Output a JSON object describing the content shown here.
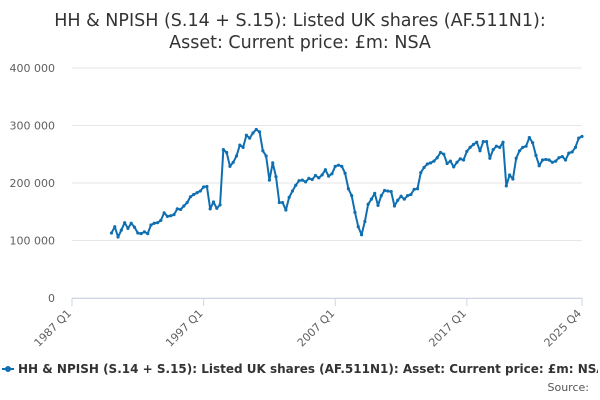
{
  "chart_data": {
    "type": "line",
    "title_line1": "HH & NPISH (S.14 + S.15): Listed UK shares (AF.511N1):",
    "title_line2": "Asset: Current price: £m: NSA",
    "ylim": [
      0,
      400000
    ],
    "yticks": [
      "0",
      "100 000",
      "200 000",
      "300 000",
      "400 000"
    ],
    "ytick_values": [
      0,
      100000,
      200000,
      300000,
      400000
    ],
    "xticks": [
      {
        "label": "1987 Q1",
        "value": 1987.0
      },
      {
        "label": "1997 Q1",
        "value": 1997.0
      },
      {
        "label": "2007 Q1",
        "value": 2007.0
      },
      {
        "label": "2017 Q1",
        "value": 2017.0
      },
      {
        "label": "2025 Q4",
        "value": 2025.75
      }
    ],
    "xlim": [
      1987.0,
      2025.75
    ],
    "grid": true,
    "legend_position": "bottom",
    "series": [
      {
        "name": "HH & NPISH (S.14 + S.15): Listed UK shares (AF.511N1): Asset: Current price: £m: NSA",
        "color": "#0f6fb0",
        "points": [
          [
            1990.0,
            113000
          ],
          [
            1990.25,
            124000
          ],
          [
            1990.5,
            106000
          ],
          [
            1990.75,
            118000
          ],
          [
            1991.0,
            131000
          ],
          [
            1991.25,
            121000
          ],
          [
            1991.5,
            130000
          ],
          [
            1991.75,
            123000
          ],
          [
            1992.0,
            113000
          ],
          [
            1992.25,
            112000
          ],
          [
            1992.5,
            115000
          ],
          [
            1992.75,
            112000
          ],
          [
            1993.0,
            127000
          ],
          [
            1993.25,
            130000
          ],
          [
            1993.5,
            131000
          ],
          [
            1993.75,
            135000
          ],
          [
            1994.0,
            148000
          ],
          [
            1994.25,
            142000
          ],
          [
            1994.5,
            143000
          ],
          [
            1994.75,
            145000
          ],
          [
            1995.0,
            155000
          ],
          [
            1995.25,
            154000
          ],
          [
            1995.5,
            160000
          ],
          [
            1995.75,
            166000
          ],
          [
            1996.0,
            176000
          ],
          [
            1996.25,
            180000
          ],
          [
            1996.5,
            183000
          ],
          [
            1996.75,
            186000
          ],
          [
            1997.0,
            193000
          ],
          [
            1997.25,
            194000
          ],
          [
            1997.5,
            155000
          ],
          [
            1997.75,
            167000
          ],
          [
            1998.0,
            156000
          ],
          [
            1998.25,
            162000
          ],
          [
            1998.5,
            258000
          ],
          [
            1998.75,
            253000
          ],
          [
            1999.0,
            229000
          ],
          [
            1999.25,
            236000
          ],
          [
            1999.5,
            247000
          ],
          [
            1999.75,
            266000
          ],
          [
            2000.0,
            262000
          ],
          [
            2000.25,
            283000
          ],
          [
            2000.5,
            278000
          ],
          [
            2000.75,
            287000
          ],
          [
            2001.0,
            293000
          ],
          [
            2001.25,
            289000
          ],
          [
            2001.5,
            256000
          ],
          [
            2001.75,
            247000
          ],
          [
            2002.0,
            205000
          ],
          [
            2002.25,
            235000
          ],
          [
            2002.5,
            211000
          ],
          [
            2002.75,
            166000
          ],
          [
            2003.0,
            166000
          ],
          [
            2003.25,
            153000
          ],
          [
            2003.5,
            175000
          ],
          [
            2003.75,
            186000
          ],
          [
            2004.0,
            196000
          ],
          [
            2004.25,
            204000
          ],
          [
            2004.5,
            205000
          ],
          [
            2004.75,
            202000
          ],
          [
            2005.0,
            208000
          ],
          [
            2005.25,
            206000
          ],
          [
            2005.5,
            213000
          ],
          [
            2005.75,
            209000
          ],
          [
            2006.0,
            214000
          ],
          [
            2006.25,
            223000
          ],
          [
            2006.5,
            212000
          ],
          [
            2006.75,
            216000
          ],
          [
            2007.0,
            229000
          ],
          [
            2007.25,
            231000
          ],
          [
            2007.5,
            229000
          ],
          [
            2007.75,
            217000
          ],
          [
            2008.0,
            190000
          ],
          [
            2008.25,
            178000
          ],
          [
            2008.5,
            149000
          ],
          [
            2008.75,
            124000
          ],
          [
            2009.0,
            110000
          ],
          [
            2009.25,
            133000
          ],
          [
            2009.5,
            163000
          ],
          [
            2009.75,
            172000
          ],
          [
            2010.0,
            182000
          ],
          [
            2010.25,
            161000
          ],
          [
            2010.5,
            178000
          ],
          [
            2010.75,
            187000
          ],
          [
            2011.0,
            186000
          ],
          [
            2011.25,
            185000
          ],
          [
            2011.5,
            160000
          ],
          [
            2011.75,
            170000
          ],
          [
            2012.0,
            177000
          ],
          [
            2012.25,
            172000
          ],
          [
            2012.5,
            178000
          ],
          [
            2012.75,
            180000
          ],
          [
            2013.0,
            189000
          ],
          [
            2013.25,
            190000
          ],
          [
            2013.5,
            218000
          ],
          [
            2013.75,
            227000
          ],
          [
            2014.0,
            233000
          ],
          [
            2014.25,
            235000
          ],
          [
            2014.5,
            238000
          ],
          [
            2014.75,
            244000
          ],
          [
            2015.0,
            253000
          ],
          [
            2015.25,
            250000
          ],
          [
            2015.5,
            234000
          ],
          [
            2015.75,
            238000
          ],
          [
            2016.0,
            228000
          ],
          [
            2016.25,
            236000
          ],
          [
            2016.5,
            242000
          ],
          [
            2016.75,
            240000
          ],
          [
            2017.0,
            255000
          ],
          [
            2017.25,
            262000
          ],
          [
            2017.5,
            267000
          ],
          [
            2017.75,
            271000
          ],
          [
            2018.0,
            256000
          ],
          [
            2018.25,
            272000
          ],
          [
            2018.5,
            272000
          ],
          [
            2018.75,
            243000
          ],
          [
            2019.0,
            258000
          ],
          [
            2019.25,
            264000
          ],
          [
            2019.5,
            262000
          ],
          [
            2019.75,
            271000
          ],
          [
            2020.0,
            195000
          ],
          [
            2020.25,
            214000
          ],
          [
            2020.5,
            207000
          ],
          [
            2020.75,
            243000
          ],
          [
            2021.0,
            256000
          ],
          [
            2021.25,
            262000
          ],
          [
            2021.5,
            264000
          ],
          [
            2021.75,
            279000
          ],
          [
            2022.0,
            270000
          ],
          [
            2022.25,
            248000
          ],
          [
            2022.5,
            230000
          ],
          [
            2022.75,
            240000
          ],
          [
            2023.0,
            241000
          ],
          [
            2023.25,
            240000
          ],
          [
            2023.5,
            236000
          ],
          [
            2023.75,
            238000
          ],
          [
            2024.0,
            244000
          ],
          [
            2024.25,
            246000
          ],
          [
            2024.5,
            240000
          ],
          [
            2024.75,
            252000
          ],
          [
            2025.0,
            254000
          ],
          [
            2025.25,
            262000
          ],
          [
            2025.5,
            278000
          ],
          [
            2025.75,
            281000
          ]
        ]
      }
    ]
  },
  "legend": {
    "label": "HH & NPISH (S.14 + S.15): Listed UK shares (AF.511N1): Asset: Current price: £m: NSA"
  },
  "source_label": "Source:"
}
